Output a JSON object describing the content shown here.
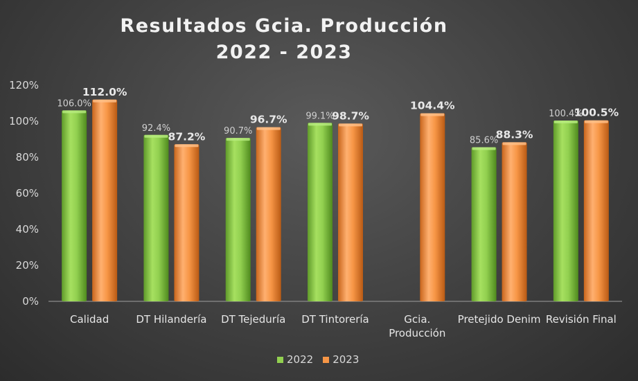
{
  "chart_data": {
    "type": "bar",
    "title_line1": "Resultados Gcia. Producción",
    "title_line2": "2022 - 2023",
    "categories": [
      [
        "Calidad"
      ],
      [
        "DT Hilandería"
      ],
      [
        "DT Tejeduría"
      ],
      [
        "DT Tintorería"
      ],
      [
        "Gcia.",
        "Producción"
      ],
      [
        "Pretejido Denim"
      ],
      [
        "Revisión Final"
      ]
    ],
    "series": [
      {
        "name": "2022",
        "color": "#92d050",
        "values": [
          106.0,
          92.4,
          90.7,
          99.1,
          null,
          85.6,
          100.4
        ],
        "labels": [
          "106.0%",
          "92.4%",
          "90.7%",
          "99.1%",
          "",
          "85.6%",
          "100.4%"
        ]
      },
      {
        "name": "2023",
        "color": "#f79646",
        "values": [
          112.0,
          87.2,
          96.7,
          98.7,
          104.4,
          88.3,
          100.5
        ],
        "labels": [
          "112.0%",
          "87.2%",
          "96.7%",
          "98.7%",
          "104.4%",
          "88.3%",
          "100.5%"
        ]
      }
    ],
    "ylim": [
      0,
      120
    ],
    "yticks": [
      "0%",
      "20%",
      "40%",
      "60%",
      "80%",
      "100%",
      "120%"
    ],
    "xlabel": "",
    "ylabel": "",
    "legend_position": "bottom",
    "grid": false
  }
}
